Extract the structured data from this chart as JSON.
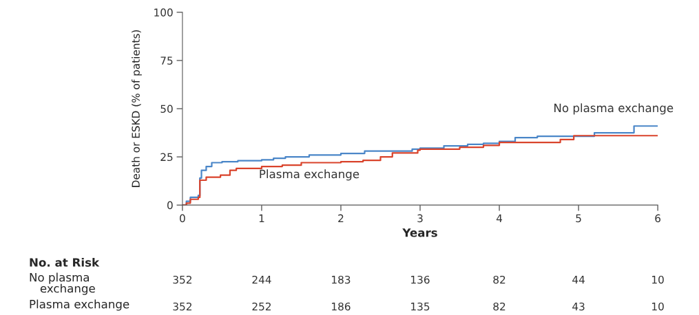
{
  "chart_data": {
    "type": "step",
    "xlabel": "Years",
    "ylabel": "Death or ESKD (% of patients)",
    "xlim": [
      0,
      6
    ],
    "ylim": [
      0,
      100
    ],
    "xticks": [
      0,
      1,
      2,
      3,
      4,
      5,
      6
    ],
    "yticks": [
      0,
      25,
      50,
      75,
      100
    ],
    "grid": false,
    "legend": false,
    "series": [
      {
        "name": "No plasma exchange",
        "color": "#4a86c8",
        "x": [
          0,
          0.05,
          0.1,
          0.2,
          0.22,
          0.24,
          0.3,
          0.37,
          0.5,
          0.7,
          1.0,
          1.15,
          1.3,
          1.6,
          2.0,
          2.3,
          2.9,
          3.0,
          3.3,
          3.6,
          3.8,
          4.0,
          4.2,
          4.48,
          5.2,
          5.7,
          6.0
        ],
        "values": [
          0,
          2,
          4,
          5,
          14,
          18,
          20,
          22,
          22.5,
          23,
          23.5,
          24.3,
          25,
          26,
          26.8,
          28,
          29,
          29.5,
          30.7,
          31.5,
          32,
          33,
          35,
          35.7,
          37.5,
          41,
          41
        ]
      },
      {
        "name": "Plasma exchange",
        "color": "#d9432b",
        "x": [
          0,
          0.05,
          0.1,
          0.2,
          0.22,
          0.3,
          0.48,
          0.6,
          0.68,
          1.0,
          1.26,
          1.5,
          2.0,
          2.28,
          2.5,
          2.65,
          2.97,
          3.0,
          3.5,
          3.8,
          4.0,
          4.7,
          4.77,
          4.94,
          6.0
        ],
        "values": [
          0,
          1,
          3,
          4,
          12.9,
          14.5,
          15.5,
          18,
          19,
          20,
          20.7,
          22,
          22.5,
          23.2,
          25,
          27,
          28.5,
          29,
          30,
          31,
          32.5,
          32.5,
          34,
          36,
          36
        ]
      }
    ],
    "annotations": [
      "No. at Risk",
      "No plasma\n   exchange",
      "352",
      "244",
      "183",
      "136",
      "82",
      "44",
      "10",
      "Plasma exchange",
      "352",
      "252",
      "186",
      "135",
      "82",
      "43",
      "10"
    ]
  }
}
